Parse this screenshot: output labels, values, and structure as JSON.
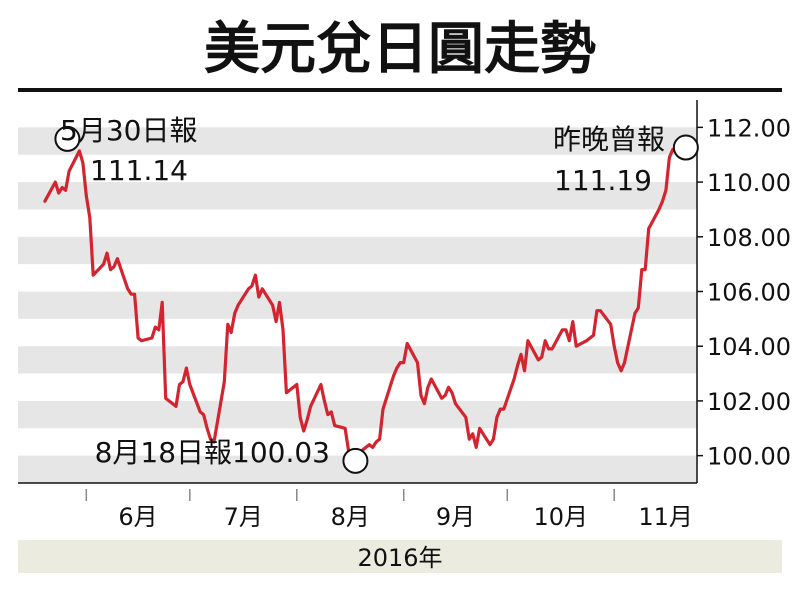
{
  "chart_data": {
    "type": "line",
    "title": "美元兌日圓走勢",
    "xlabel": "2016年",
    "ylabel": "",
    "x_tick_labels": [
      "6月",
      "7月",
      "8月",
      "9月",
      "10月",
      "11月"
    ],
    "y_ticks": [
      "100.00",
      "102.00",
      "104.00",
      "106.00",
      "108.00",
      "110.00",
      "112.00"
    ],
    "ylim": [
      99,
      113
    ],
    "grid": "alternating horizontal bands",
    "series": [
      {
        "color": "#d3242f",
        "x": [
          "2016-05-20",
          "2016-05-23",
          "2016-05-24",
          "2016-05-25",
          "2016-05-26",
          "2016-05-27",
          "2016-05-30",
          "2016-05-31",
          "2016-06-01",
          "2016-06-02",
          "2016-06-03",
          "2016-06-06",
          "2016-06-07",
          "2016-06-08",
          "2016-06-09",
          "2016-06-10",
          "2016-06-13",
          "2016-06-14",
          "2016-06-15",
          "2016-06-16",
          "2016-06-17",
          "2016-06-20",
          "2016-06-21",
          "2016-06-22",
          "2016-06-23",
          "2016-06-24",
          "2016-06-27",
          "2016-06-28",
          "2016-06-29",
          "2016-06-30",
          "2016-07-01",
          "2016-07-04",
          "2016-07-05",
          "2016-07-06",
          "2016-07-07",
          "2016-07-08",
          "2016-07-11",
          "2016-07-12",
          "2016-07-13",
          "2016-07-14",
          "2016-07-15",
          "2016-07-18",
          "2016-07-19",
          "2016-07-20",
          "2016-07-21",
          "2016-07-22",
          "2016-07-25",
          "2016-07-26",
          "2016-07-27",
          "2016-07-28",
          "2016-07-29",
          "2016-08-01",
          "2016-08-02",
          "2016-08-03",
          "2016-08-04",
          "2016-08-05",
          "2016-08-08",
          "2016-08-09",
          "2016-08-10",
          "2016-08-11",
          "2016-08-12",
          "2016-08-15",
          "2016-08-16",
          "2016-08-17",
          "2016-08-18",
          "2016-08-19",
          "2016-08-22",
          "2016-08-23",
          "2016-08-24",
          "2016-08-25",
          "2016-08-26",
          "2016-08-29",
          "2016-08-30",
          "2016-08-31",
          "2016-09-01",
          "2016-09-02",
          "2016-09-05",
          "2016-09-06",
          "2016-09-07",
          "2016-09-08",
          "2016-09-09",
          "2016-09-12",
          "2016-09-13",
          "2016-09-14",
          "2016-09-15",
          "2016-09-16",
          "2016-09-19",
          "2016-09-20",
          "2016-09-21",
          "2016-09-22",
          "2016-09-23",
          "2016-09-26",
          "2016-09-27",
          "2016-09-28",
          "2016-09-29",
          "2016-09-30",
          "2016-10-03",
          "2016-10-04",
          "2016-10-05",
          "2016-10-06",
          "2016-10-07",
          "2016-10-10",
          "2016-10-11",
          "2016-10-12",
          "2016-10-13",
          "2016-10-14",
          "2016-10-17",
          "2016-10-18",
          "2016-10-19",
          "2016-10-20",
          "2016-10-21",
          "2016-10-24",
          "2016-10-25",
          "2016-10-26",
          "2016-10-27",
          "2016-10-28",
          "2016-10-31",
          "2016-11-01",
          "2016-11-02",
          "2016-11-03",
          "2016-11-04",
          "2016-11-07",
          "2016-11-08",
          "2016-11-09",
          "2016-11-10",
          "2016-11-11",
          "2016-11-14",
          "2016-11-15",
          "2016-11-16",
          "2016-11-17",
          "2016-11-18"
        ],
        "values": [
          109.3,
          110.0,
          109.6,
          109.8,
          109.7,
          110.4,
          111.14,
          110.7,
          109.5,
          108.7,
          106.6,
          107.0,
          107.4,
          106.8,
          106.9,
          107.2,
          106.1,
          105.9,
          105.9,
          104.3,
          104.2,
          104.3,
          104.7,
          104.6,
          105.6,
          102.1,
          101.8,
          102.6,
          102.7,
          103.2,
          102.6,
          101.6,
          101.5,
          101.0,
          100.6,
          100.5,
          102.7,
          104.8,
          104.5,
          105.2,
          105.5,
          106.1,
          106.2,
          106.6,
          105.8,
          106.1,
          105.5,
          104.9,
          105.6,
          104.6,
          102.3,
          102.6,
          101.4,
          100.9,
          101.3,
          101.8,
          102.6,
          102.0,
          101.5,
          101.6,
          101.1,
          101.0,
          100.2,
          100.1,
          100.03,
          100.1,
          100.4,
          100.3,
          100.5,
          100.6,
          101.7,
          102.9,
          103.2,
          103.4,
          103.4,
          104.1,
          103.4,
          102.2,
          101.9,
          102.5,
          102.8,
          102.1,
          102.2,
          102.5,
          102.3,
          101.9,
          101.4,
          100.6,
          100.8,
          100.3,
          101.0,
          100.4,
          100.6,
          101.4,
          101.7,
          101.7,
          102.8,
          103.3,
          103.7,
          103.1,
          104.2,
          103.5,
          103.6,
          104.2,
          103.9,
          103.9,
          104.6,
          104.6,
          104.2,
          104.9,
          104.0,
          104.2,
          104.3,
          104.4,
          105.3,
          105.3,
          104.8,
          104.0,
          103.4,
          103.1,
          103.4,
          105.2,
          105.4,
          106.8,
          106.8,
          108.3,
          109.0,
          109.3,
          109.7,
          110.9,
          111.19
        ]
      }
    ],
    "annotations": [
      {
        "line1": "5月30日報",
        "line2": "111.14",
        "x": "2016-05-30",
        "y": 111.14
      },
      {
        "line1": "8月18日報100.03",
        "x": "2016-08-18",
        "y": 100.03
      },
      {
        "line1": "昨晚曾報",
        "line2": "111.19",
        "x": "2016-11-18",
        "y": 111.19
      }
    ]
  }
}
